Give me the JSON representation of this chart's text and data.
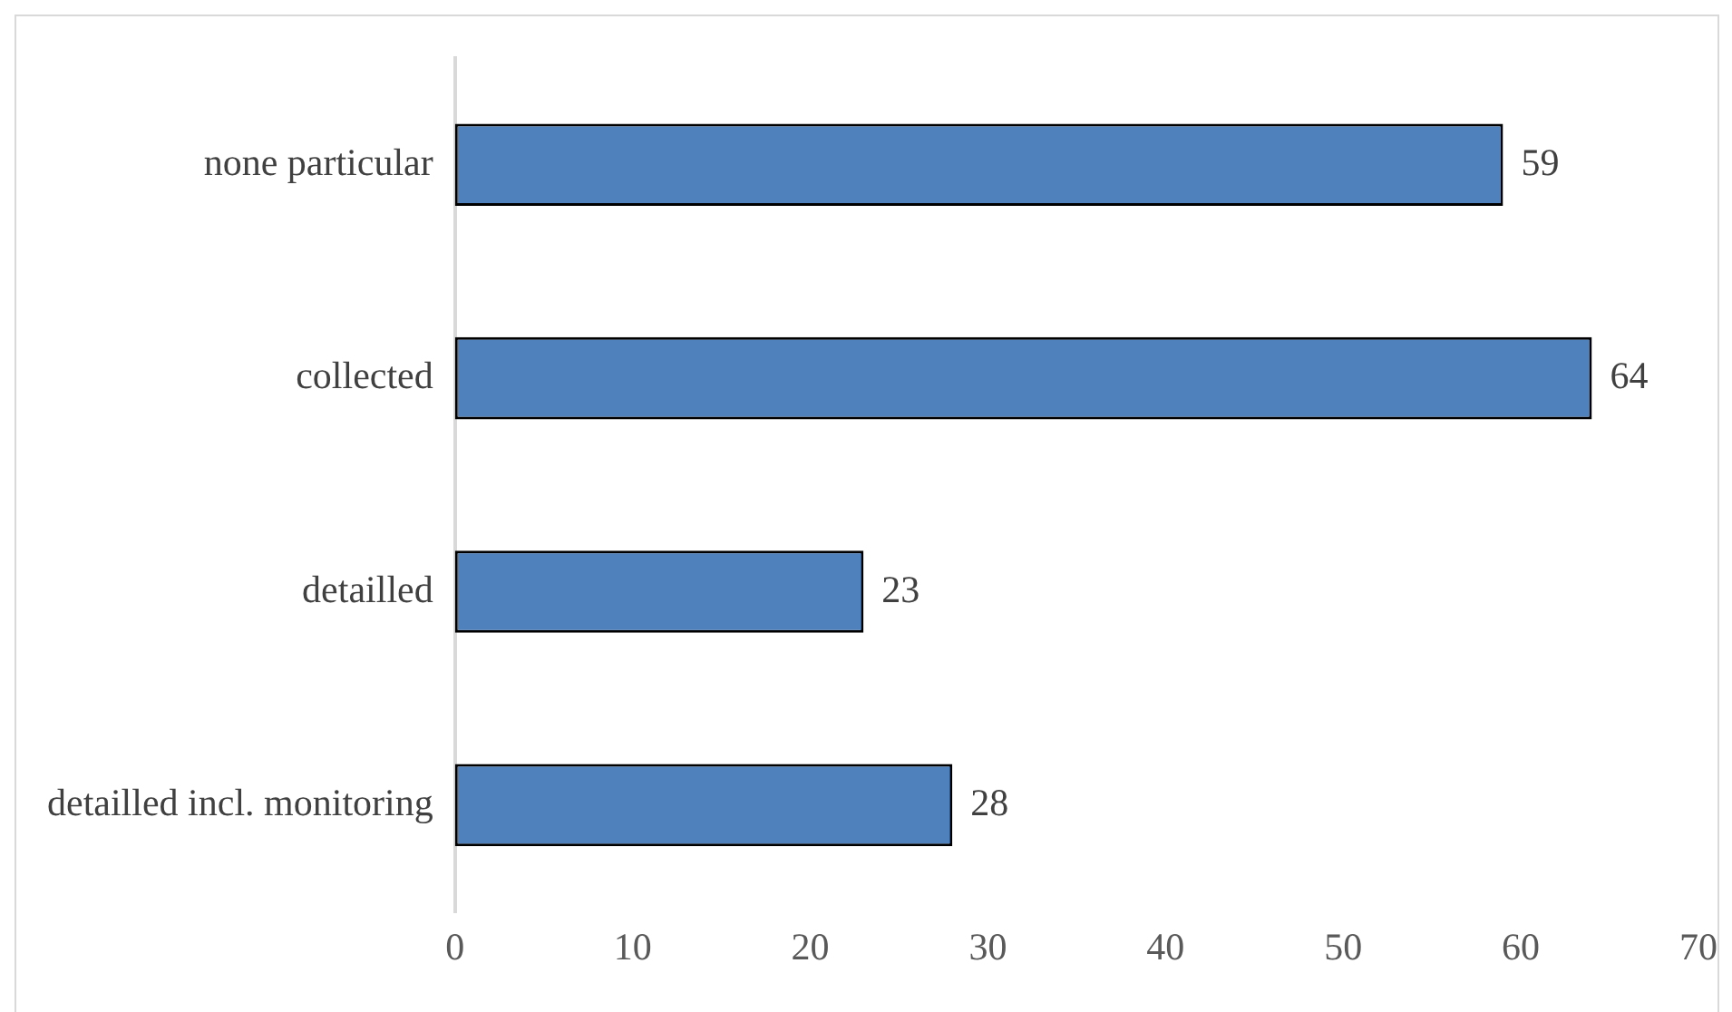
{
  "chart_data": {
    "type": "bar",
    "orientation": "horizontal",
    "categories": [
      "none particular",
      "collected",
      "detailled",
      "detailled incl. monitoring"
    ],
    "values": [
      59,
      64,
      23,
      28
    ],
    "color": "#4f81bd",
    "xlim": [
      0,
      70
    ],
    "xticks": [
      0,
      10,
      20,
      30,
      40,
      50,
      60,
      70
    ],
    "grid": false,
    "legend": false,
    "data_labels": true
  }
}
